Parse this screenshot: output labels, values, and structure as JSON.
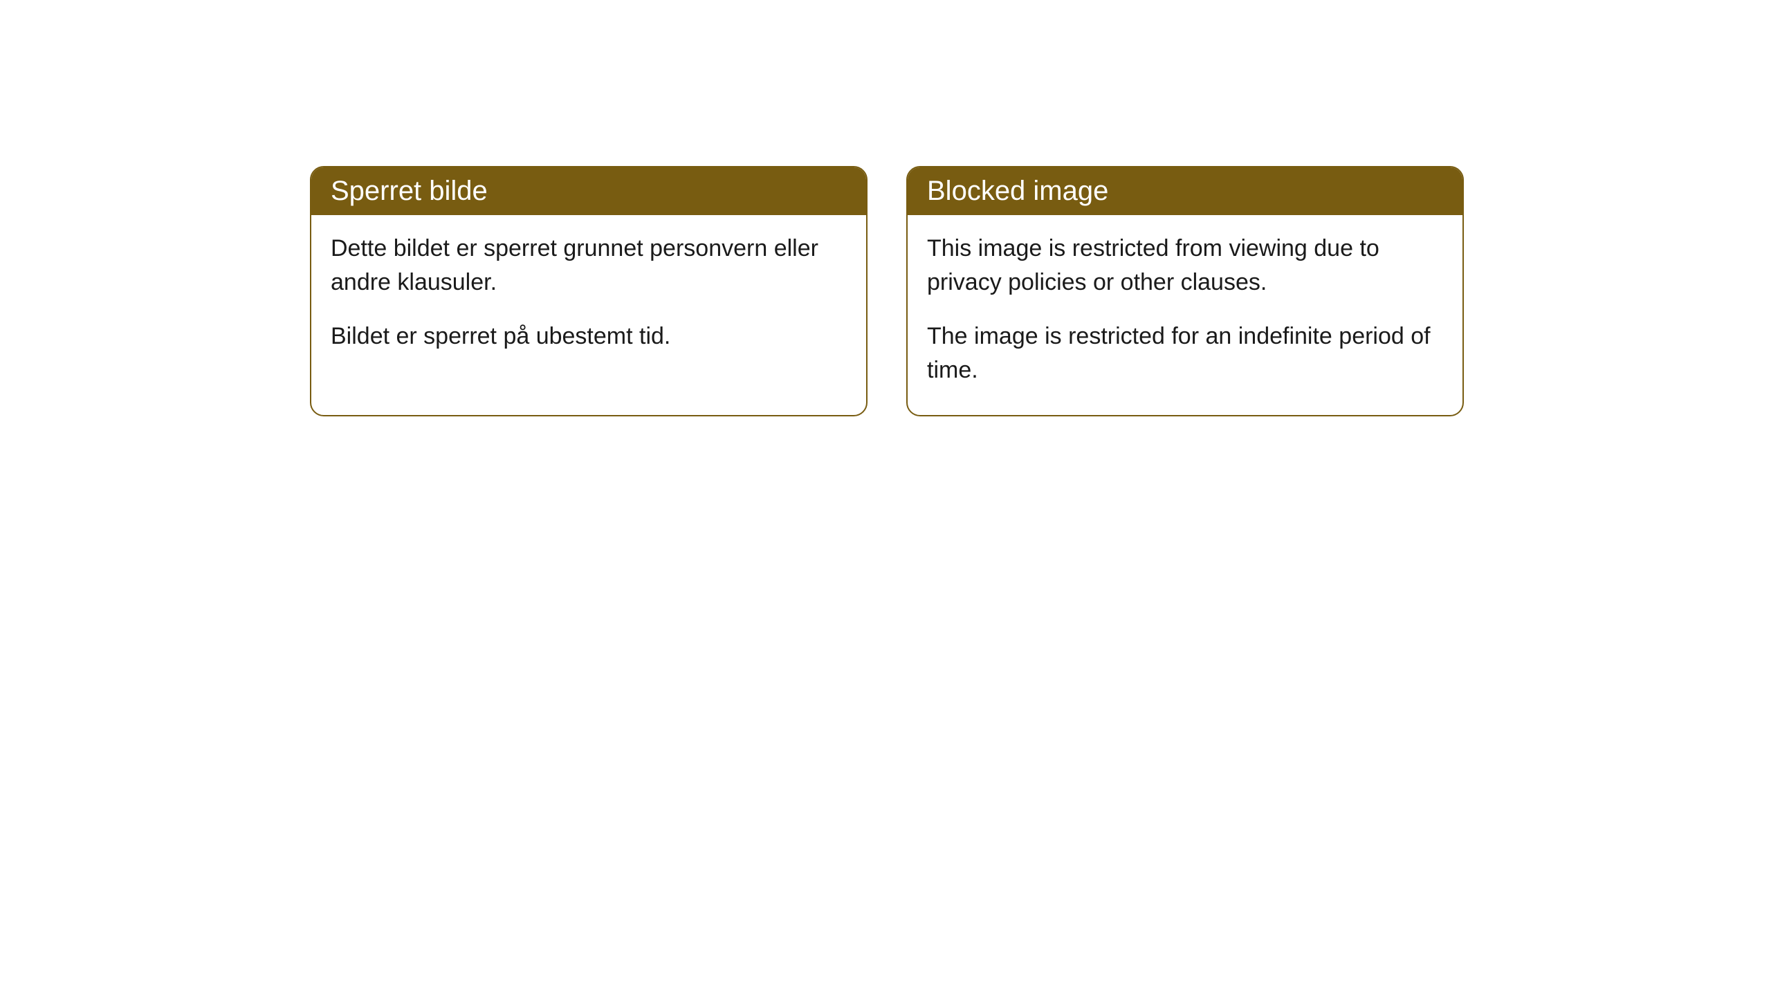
{
  "cards": [
    {
      "title": "Sperret bilde",
      "paragraph1": "Dette bildet er sperret grunnet personvern eller andre klausuler.",
      "paragraph2": "Bildet er sperret på ubestemt tid."
    },
    {
      "title": "Blocked image",
      "paragraph1": "This image is restricted from viewing due to privacy policies or other clauses.",
      "paragraph2": "The image is restricted for an indefinite period of time."
    }
  ],
  "styling": {
    "header_bg_color": "#785c11",
    "header_text_color": "#ffffff",
    "border_color": "#785c11",
    "border_radius": 20,
    "card_bg_color": "#ffffff",
    "body_text_color": "#1a1a1a",
    "title_fontsize": 40,
    "body_fontsize": 34
  }
}
